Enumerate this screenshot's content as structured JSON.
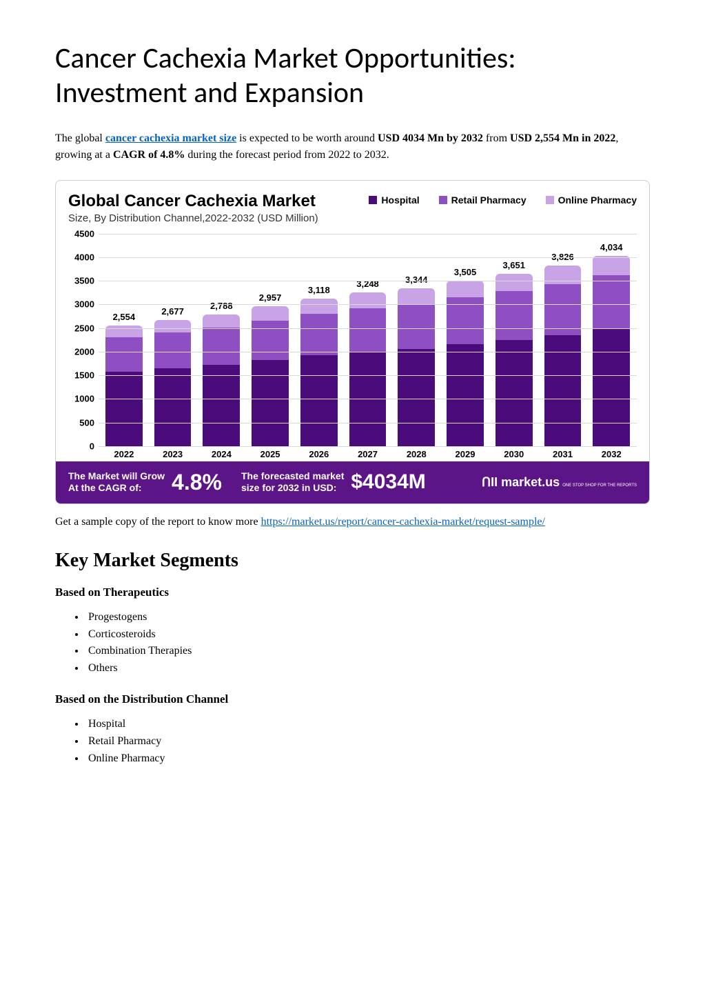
{
  "title": "Cancer Cachexia Market Opportunities: Investment and Expansion",
  "intro": {
    "pre": "The global ",
    "link_text": "cancer cachexia market size",
    "mid1": " is expected to be worth around ",
    "bold1": "USD 4034 Mn by 2032",
    "mid2": " from ",
    "bold2": "USD 2,554 Mn in 2022",
    "mid3": ", growing at a ",
    "bold3": "CAGR of 4.8%",
    "tail": " during the forecast period from 2022 to 2032."
  },
  "chart": {
    "title": "Global Cancer Cachexia Market",
    "subtitle": "Size, By Distribution Channel,2022-2032 (USD Million)",
    "legend": [
      {
        "label": "Hospital",
        "color": "#4a0c7a"
      },
      {
        "label": "Retail Pharmacy",
        "color": "#8e4fc2"
      },
      {
        "label": "Online Pharmacy",
        "color": "#c8a3e6"
      }
    ],
    "type": "stacked-bar",
    "ylim": [
      0,
      4500
    ],
    "ytick_step": 500,
    "yticks": [
      "0",
      "500",
      "1000",
      "1500",
      "2000",
      "2500",
      "3000",
      "3500",
      "4000",
      "4500"
    ],
    "grid_color": "#d9d9d9",
    "categories": [
      "2022",
      "2023",
      "2024",
      "2025",
      "2026",
      "2027",
      "2028",
      "2029",
      "2030",
      "2031",
      "2032"
    ],
    "totals": [
      "2,554",
      "2,677",
      "2,788",
      "2,957",
      "3,118",
      "3,248",
      "3,344",
      "3,505",
      "3,651",
      "3,826",
      "4,034"
    ],
    "series": {
      "hospital": [
        1580,
        1650,
        1720,
        1820,
        1920,
        2000,
        2060,
        2155,
        2245,
        2350,
        2480
      ],
      "retail_pharmacy": [
        720,
        760,
        790,
        840,
        885,
        920,
        950,
        995,
        1035,
        1085,
        1140
      ],
      "online_pharmacy": [
        254,
        267,
        278,
        297,
        313,
        328,
        334,
        355,
        371,
        391,
        414
      ]
    },
    "colors": {
      "hospital": "#4a0c7a",
      "retail_pharmacy": "#8e4fc2",
      "online_pharmacy": "#c8a3e6"
    },
    "label_fontsize": 13,
    "title_fontsize": 24,
    "bar_radius": 6,
    "footer": {
      "bg": "#5b1587",
      "text1a": "The Market will Grow",
      "text1b": "At the CAGR of:",
      "cagr": "4.8%",
      "text2a": "The forecasted market",
      "text2b": "size for 2032 in USD:",
      "value": "$4034M",
      "logo": "ՈII market.us",
      "logo_sub": "ONE STOP SHOP FOR THE REPORTS"
    }
  },
  "sample": {
    "pre": "Get a sample copy of the report to know more ",
    "link": "https://market.us/report/cancer-cachexia-market/request-sample/"
  },
  "segments_heading": "Key Market Segments",
  "seglists": [
    {
      "heading": "Based on Therapeutics",
      "items": [
        "Progestogens",
        "Corticosteroids",
        "Combination Therapies",
        "Others"
      ]
    },
    {
      "heading": "Based on the Distribution Channel",
      "items": [
        "Hospital",
        "Retail Pharmacy",
        "Online Pharmacy"
      ]
    }
  ]
}
